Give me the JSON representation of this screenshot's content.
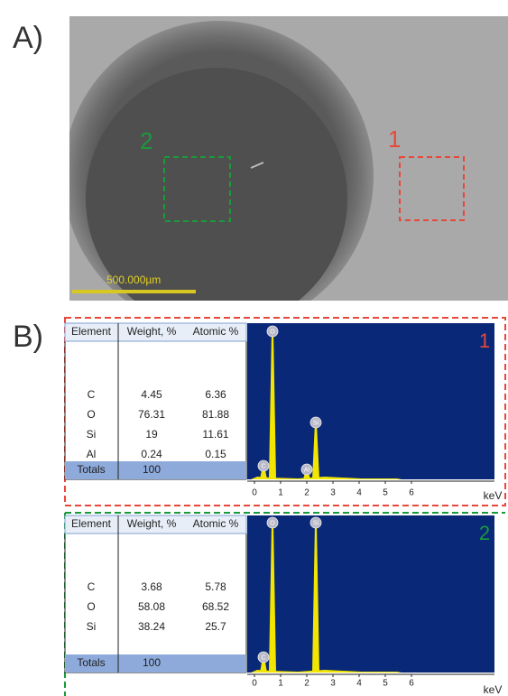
{
  "panel_a": {
    "label": "A)",
    "regions": [
      {
        "label": "2"
      },
      {
        "label": "1"
      }
    ],
    "scale_bar": "500.000µm"
  },
  "panel_b": {
    "label": "B)",
    "spectra": [
      {
        "label": "1",
        "table": {
          "header": [
            "Element",
            "Weight, %",
            "Atomic %"
          ],
          "rows": [
            [
              "C",
              "4.45",
              "6.36"
            ],
            [
              "O",
              "76.31",
              "81.88"
            ],
            [
              "Si",
              "19",
              "11.61"
            ],
            [
              "Al",
              "0.24",
              "0.15"
            ]
          ],
          "totals": [
            "Totals",
            "100"
          ]
        },
        "peaks": [
          "C",
          "O",
          "Si",
          "Al"
        ]
      },
      {
        "label": "2",
        "table": {
          "header": [
            "Element",
            "Weight, %",
            "Atomic %"
          ],
          "rows": [
            [
              "C",
              "3.68",
              "5.78"
            ],
            [
              "O",
              "58.08",
              "68.52"
            ],
            [
              "Si",
              "38.24",
              "25.7"
            ]
          ],
          "totals": [
            "Totals",
            "100"
          ]
        },
        "peaks": [
          "C",
          "O",
          "Si"
        ]
      }
    ],
    "x_ticks": [
      "0",
      "1",
      "2",
      "3",
      "4",
      "5",
      "6"
    ],
    "x_unit": "keV"
  }
}
